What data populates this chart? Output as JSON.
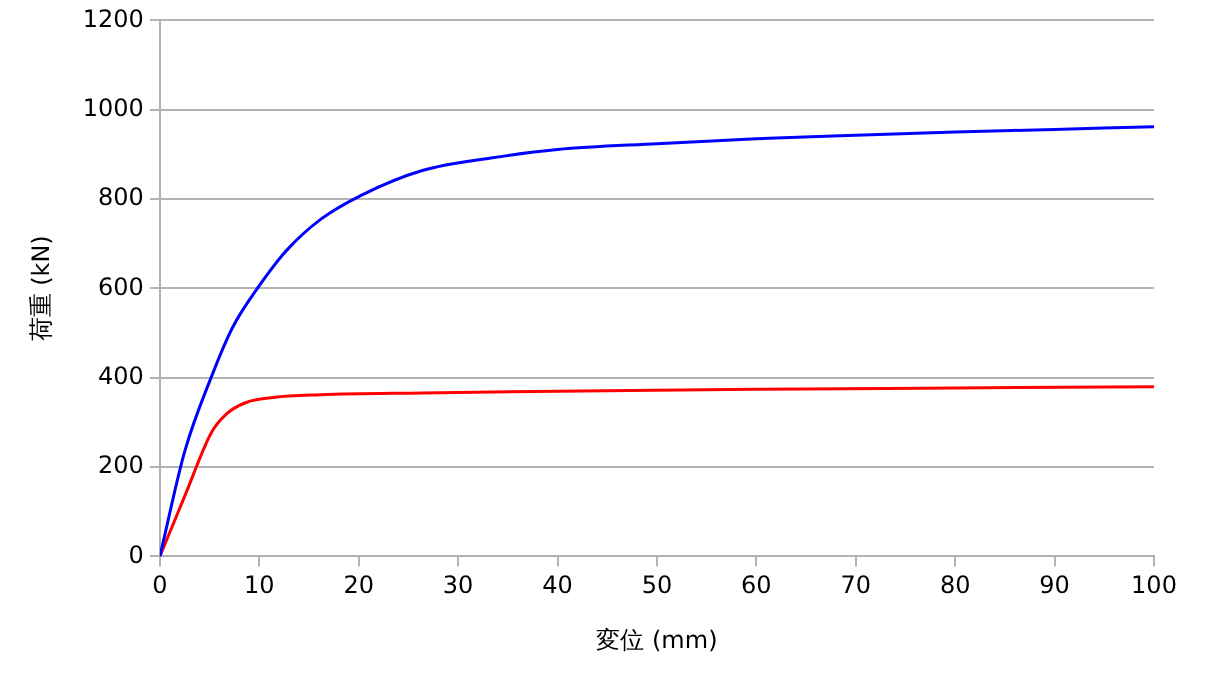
{
  "chart_data": {
    "type": "line",
    "xlabel": "変位 (mm)",
    "ylabel": "荷重 (kN)",
    "xlim": [
      0,
      100
    ],
    "xticks": [
      0,
      10,
      20,
      30,
      40,
      50,
      60,
      70,
      80,
      90,
      100
    ],
    "ylim": [
      0,
      1200
    ],
    "yticks": [
      0,
      200,
      400,
      600,
      800,
      1000,
      1200
    ],
    "grid": "y",
    "legend": false,
    "marker": "none",
    "series": [
      {
        "color": "#0000ff",
        "x": [
          0,
          2.5,
          5.2,
          7.3,
          10,
          12.7,
          16.2,
          20.3,
          26.4,
          33.3,
          40,
          50,
          60,
          70,
          80,
          90,
          100
        ],
        "values": [
          0,
          235,
          403,
          512,
          606,
          684,
          755,
          809,
          864,
          892,
          911,
          924,
          935,
          943,
          950,
          956,
          962
        ]
      },
      {
        "color": "#ff0000",
        "x": [
          0,
          2.5,
          5.2,
          6.6,
          8.6,
          11.4,
          16.2,
          26.4,
          40,
          60,
          80,
          100
        ],
        "values": [
          0,
          135,
          278,
          317,
          344,
          356,
          362,
          366,
          370,
          374,
          377,
          380
        ]
      }
    ]
  }
}
